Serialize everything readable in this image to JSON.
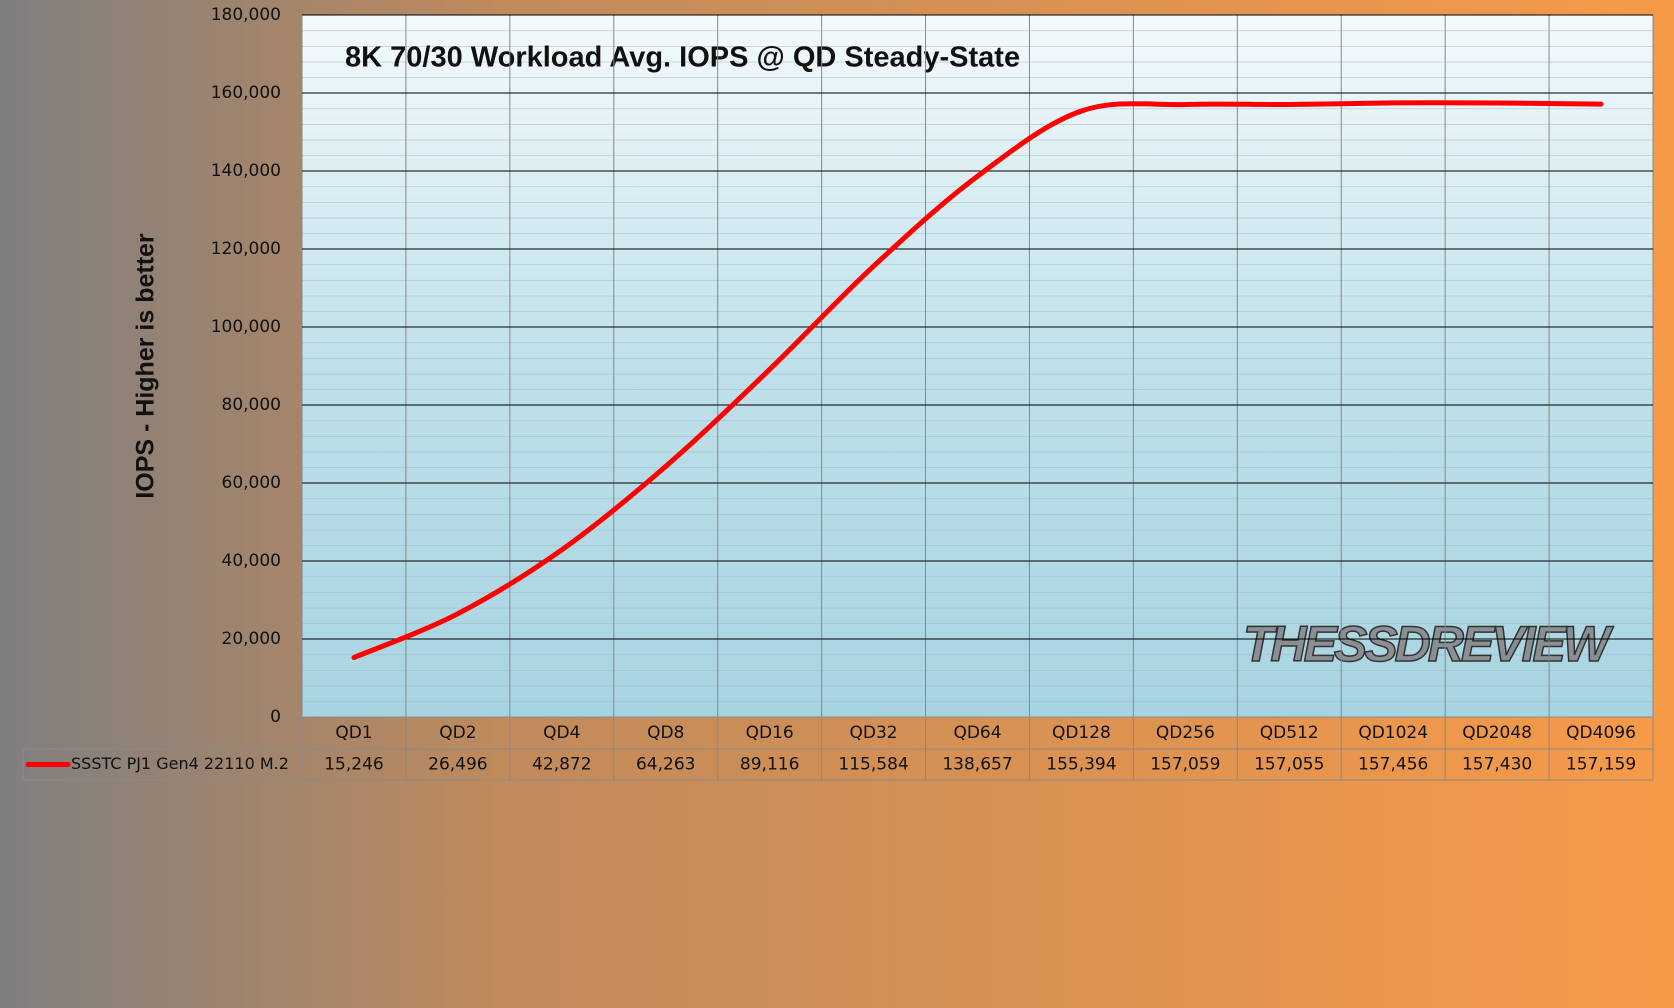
{
  "chart_data": {
    "type": "line",
    "title": "8K 70/30 Workload Avg. IOPS @ QD Steady-State",
    "y_label": "IOPS - Higher is better",
    "watermark": "THESSDREVIEW",
    "categories": [
      "QD1",
      "QD2",
      "QD4",
      "QD8",
      "QD16",
      "QD32",
      "QD64",
      "QD128",
      "QD256",
      "QD512",
      "QD1024",
      "QD2048",
      "QD4096"
    ],
    "series": [
      {
        "name": "SSSTC PJ1  Gen4 22110 M.2",
        "color": "#ff0000",
        "values": [
          15246,
          26496,
          42872,
          64263,
          89116,
          115584,
          138657,
          155394,
          157059,
          157055,
          157456,
          157430,
          157159
        ],
        "value_labels": [
          "15,246",
          "26,496",
          "42,872",
          "64,263",
          "89,116",
          "115,584",
          "138,657",
          "155,394",
          "157,059",
          "157,055",
          "157,456",
          "157,430",
          "157,159"
        ]
      }
    ],
    "ylim": [
      0,
      180000
    ],
    "yticks": [
      0,
      {
        "value": 20000,
        "label": "20,000"
      },
      {
        "value": 40000,
        "label": "40,000"
      },
      {
        "value": 60000,
        "label": "60,000"
      },
      {
        "value": 80000,
        "label": "80,000"
      },
      {
        "value": 100000,
        "label": "100,000"
      },
      {
        "value": 120000,
        "label": "120,000"
      },
      {
        "value": 140000,
        "label": "140,000"
      },
      {
        "value": 160000,
        "label": "160,000"
      },
      {
        "value": 180000,
        "label": "180,000"
      }
    ],
    "grid": true
  }
}
